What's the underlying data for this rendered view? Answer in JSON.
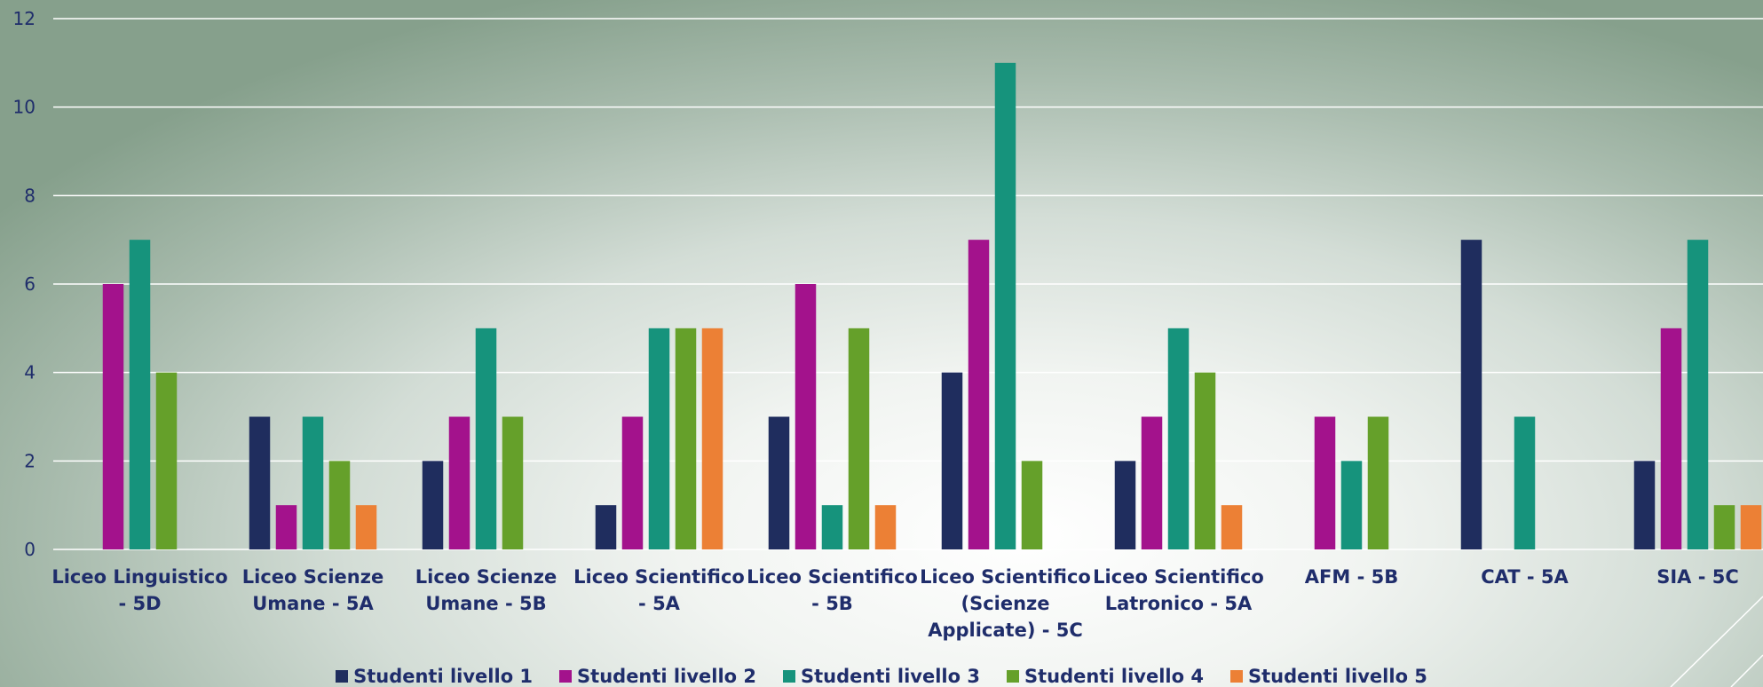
{
  "chart_data": {
    "type": "bar",
    "categories": [
      [
        "Liceo Linguistico",
        "- 5D"
      ],
      [
        "Liceo Scienze",
        "Umane - 5A"
      ],
      [
        "Liceo Scienze",
        "Umane - 5B"
      ],
      [
        "Liceo Scientifico",
        "- 5A"
      ],
      [
        "Liceo Scientifico",
        "- 5B"
      ],
      [
        "Liceo Scientifico",
        "(Scienze",
        "Applicate) - 5C"
      ],
      [
        "Liceo Scientifico",
        "Latronico - 5A"
      ],
      [
        "AFM - 5B"
      ],
      [
        "CAT - 5A"
      ],
      [
        "SIA  - 5C"
      ]
    ],
    "series": [
      {
        "name": "Studenti livello 1",
        "color": "#1f2d5e",
        "values": [
          0,
          3,
          2,
          1,
          3,
          4,
          2,
          0,
          7,
          2
        ]
      },
      {
        "name": "Studenti livello 2",
        "color": "#a3128c",
        "values": [
          6,
          1,
          3,
          3,
          6,
          7,
          3,
          3,
          0,
          5
        ]
      },
      {
        "name": "Studenti livello 3",
        "color": "#16937c",
        "values": [
          7,
          3,
          5,
          5,
          1,
          11,
          5,
          2,
          3,
          7
        ]
      },
      {
        "name": "Studenti livello 4",
        "color": "#65a02a",
        "values": [
          4,
          2,
          3,
          5,
          5,
          2,
          4,
          3,
          0,
          1
        ]
      },
      {
        "name": "Studenti livello 5",
        "color": "#ec8035",
        "values": [
          0,
          1,
          0,
          5,
          1,
          0,
          1,
          0,
          0,
          1
        ]
      }
    ],
    "yticks": [
      "0",
      "2",
      "4",
      "6",
      "8",
      "10",
      "12"
    ],
    "ylim": [
      0,
      12
    ],
    "grid": true,
    "legend": "bottom"
  }
}
